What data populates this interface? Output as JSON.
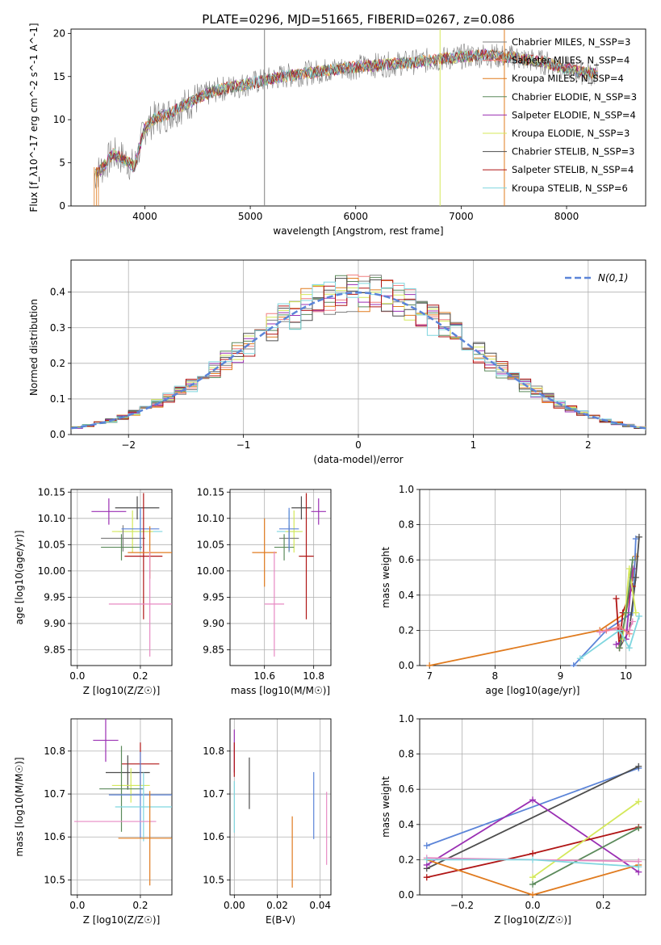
{
  "figure": {
    "title": "PLATE=0296, MJD=51665, FIBERID=0267, z=0.086"
  },
  "colors": {
    "miles_chabrier": "#808080",
    "miles_salpeter": "#f07f7f",
    "miles_kroupa": "#e07b1f",
    "elodie_chabrier": "#5b8a5b",
    "elodie_salpeter": "#9a2fb3",
    "elodie_kroupa": "#d4e85a",
    "stelib_chabrier": "#4d4d4d",
    "stelib_salpeter": "#b01515",
    "stelib_kroupa": "#7fd6df",
    "blue": "#5b84d8",
    "pink": "#e78ac3",
    "normal_curve": "#5b84d8",
    "grid": "#b0b0b0"
  },
  "chart_data": [
    {
      "id": "spectrum",
      "type": "line",
      "title": "PLATE=0296, MJD=51665, FIBERID=0267, z=0.086",
      "xlabel": "wavelength [Angstrom, rest frame]",
      "ylabel": "Flux [f_λ10^-17 erg cm^-2 s^-1 A^-1]",
      "xlim": [
        3300,
        8750
      ],
      "ylim": [
        0,
        20.5
      ],
      "xticks": [
        4000,
        5000,
        6000,
        7000,
        8000
      ],
      "yticks": [
        0,
        5,
        10,
        15,
        20
      ],
      "grid": false,
      "legend_position": "right",
      "continuum": {
        "x": [
          3520,
          3600,
          3700,
          3800,
          3900,
          4000,
          4100,
          4200,
          4300,
          4400,
          4500,
          4700,
          5000,
          5300,
          5600,
          5900,
          6200,
          6500,
          6800,
          7000,
          7200,
          7500,
          7800,
          8100,
          8300
        ],
        "y": [
          3.5,
          4.5,
          6.0,
          5.5,
          4.5,
          9.0,
          10.2,
          10.5,
          11.2,
          11.8,
          12.5,
          13.5,
          14.2,
          15.0,
          15.5,
          16.0,
          16.3,
          16.6,
          17.0,
          17.3,
          17.5,
          17.2,
          16.6,
          15.6,
          15.2
        ]
      },
      "series": [
        {
          "name": "Chabrier MILES, N_SSP=3",
          "color_key": "miles_chabrier"
        },
        {
          "name": "Salpeter MILES, N_SSP=4",
          "color_key": "miles_salpeter"
        },
        {
          "name": "Kroupa MILES, N_SSP=4",
          "color_key": "miles_kroupa"
        },
        {
          "name": "Chabrier ELODIE, N_SSP=3",
          "color_key": "elodie_chabrier"
        },
        {
          "name": "Salpeter ELODIE, N_SSP=4",
          "color_key": "elodie_salpeter"
        },
        {
          "name": "Kroupa ELODIE, N_SSP=3",
          "color_key": "elodie_kroupa"
        },
        {
          "name": "Chabrier STELIB, N_SSP=3",
          "color_key": "stelib_chabrier"
        },
        {
          "name": "Salpeter STELIB, N_SSP=4",
          "color_key": "stelib_salpeter"
        },
        {
          "name": "Kroupa STELIB, N_SSP=6",
          "color_key": "stelib_kroupa"
        }
      ],
      "spikes": [
        {
          "x": 5135,
          "color_key": "miles_chabrier"
        },
        {
          "x": 6800,
          "color_key": "elodie_kroupa"
        },
        {
          "x": 7410,
          "color_key": "miles_kroupa"
        }
      ]
    },
    {
      "id": "residuals",
      "type": "histogram",
      "xlabel": "(data-model)/error",
      "ylabel": "Normed distribution",
      "xlim": [
        -2.5,
        2.5
      ],
      "ylim": [
        0,
        0.49
      ],
      "xticks": [
        -2,
        -1,
        0,
        1,
        2
      ],
      "yticks": [
        0.0,
        0.1,
        0.2,
        0.3,
        0.4
      ],
      "grid": true,
      "legend": "N(0,1)",
      "legend_position": "top-right",
      "curve": "normal pdf mean 0 sigma 1"
    },
    {
      "id": "age-vs-Z",
      "type": "scatter",
      "xlabel": "Z [log10(Z/Z☉)]",
      "ylabel": "age  [log10(age/yr)]",
      "xlim": [
        -0.02,
        0.3
      ],
      "ylim": [
        9.82,
        10.155
      ],
      "xticks": [
        0.0,
        0.2
      ],
      "yticks": [
        9.85,
        9.9,
        9.95,
        10.0,
        10.05,
        10.1,
        10.15
      ],
      "grid": true,
      "points": [
        {
          "x": 0.1,
          "y": 10.113,
          "xerr": 0.055,
          "yerr": 0.025,
          "color_key": "elodie_salpeter"
        },
        {
          "x": 0.19,
          "y": 10.12,
          "xerr": 0.07,
          "yerr": 0.022,
          "color_key": "stelib_chabrier"
        },
        {
          "x": 0.2,
          "y": 10.075,
          "xerr": 0.07,
          "yerr": 0.04,
          "color_key": "stelib_kroupa"
        },
        {
          "x": 0.175,
          "y": 10.075,
          "xerr": 0.065,
          "yerr": 0.04,
          "color_key": "elodie_kroupa"
        },
        {
          "x": 0.145,
          "y": 10.062,
          "xerr": 0.07,
          "yerr": 0.025,
          "color_key": "miles_chabrier"
        },
        {
          "x": 0.14,
          "y": 10.045,
          "xerr": 0.065,
          "yerr": 0.025,
          "color_key": "elodie_chabrier"
        },
        {
          "x": 0.2,
          "y": 10.08,
          "xerr": 0.06,
          "yerr": 0.04,
          "color_key": "blue"
        },
        {
          "x": 0.21,
          "y": 10.028,
          "xerr": 0.06,
          "yerr": 0.12,
          "color_key": "stelib_salpeter"
        },
        {
          "x": 0.23,
          "y": 10.035,
          "xerr": 0.07,
          "yerr": 0.05,
          "color_key": "miles_kroupa"
        },
        {
          "x": 0.23,
          "y": 9.937,
          "xerr": 0.13,
          "yerr": 0.1,
          "color_key": "pink"
        }
      ]
    },
    {
      "id": "age-vs-mass",
      "type": "scatter",
      "xlabel": "mass [log10(M/M☉)]",
      "ylabel": "",
      "xlim": [
        10.46,
        10.87
      ],
      "ylim": [
        9.82,
        10.155
      ],
      "xticks": [
        10.6,
        10.8
      ],
      "yticks": [
        9.85,
        9.9,
        9.95,
        10.0,
        10.05,
        10.1,
        10.15
      ],
      "grid": true,
      "points": [
        {
          "x": 10.82,
          "y": 10.113,
          "xerr": 0.03,
          "yerr": 0.025,
          "color_key": "elodie_salpeter"
        },
        {
          "x": 10.75,
          "y": 10.12,
          "xerr": 0.04,
          "yerr": 0.022,
          "color_key": "stelib_chabrier"
        },
        {
          "x": 10.7,
          "y": 10.075,
          "xerr": 0.05,
          "yerr": 0.04,
          "color_key": "stelib_kroupa"
        },
        {
          "x": 10.72,
          "y": 10.075,
          "xerr": 0.035,
          "yerr": 0.04,
          "color_key": "elodie_kroupa"
        },
        {
          "x": 10.7,
          "y": 10.062,
          "xerr": 0.04,
          "yerr": 0.025,
          "color_key": "miles_chabrier"
        },
        {
          "x": 10.68,
          "y": 10.045,
          "xerr": 0.04,
          "yerr": 0.025,
          "color_key": "elodie_chabrier"
        },
        {
          "x": 10.7,
          "y": 10.08,
          "xerr": 0.04,
          "yerr": 0.04,
          "color_key": "blue"
        },
        {
          "x": 10.77,
          "y": 10.028,
          "xerr": 0.03,
          "yerr": 0.12,
          "color_key": "stelib_salpeter"
        },
        {
          "x": 10.6,
          "y": 10.035,
          "xerr": 0.05,
          "yerr": 0.065,
          "color_key": "miles_kroupa"
        },
        {
          "x": 10.64,
          "y": 9.937,
          "xerr": 0.04,
          "yerr": 0.1,
          "color_key": "pink"
        }
      ]
    },
    {
      "id": "massweight-vs-age",
      "type": "line",
      "xlabel": "age  [log10(age/yr)]",
      "ylabel": "mass weight",
      "xlim": [
        6.85,
        10.3
      ],
      "ylim": [
        0,
        1.0
      ],
      "xticks": [
        7,
        8,
        9,
        10
      ],
      "yticks": [
        0.0,
        0.2,
        0.4,
        0.6,
        0.8,
        1.0
      ],
      "grid": true,
      "series": [
        {
          "color_key": "miles_kroupa",
          "x": [
            7.0,
            9.6,
            10.0,
            10.1,
            10.15
          ],
          "y": [
            0.0,
            0.2,
            0.3,
            0.5,
            0.62
          ]
        },
        {
          "color_key": "blue",
          "x": [
            9.2,
            9.7,
            10.1,
            10.15
          ],
          "y": [
            0.0,
            0.2,
            0.3,
            0.72
          ]
        },
        {
          "color_key": "stelib_chabrier",
          "x": [
            9.9,
            10.05,
            10.15,
            10.2
          ],
          "y": [
            0.1,
            0.2,
            0.5,
            0.73
          ]
        },
        {
          "color_key": "pink",
          "x": [
            9.6,
            9.9,
            10.05,
            10.1
          ],
          "y": [
            0.19,
            0.21,
            0.2,
            0.25
          ]
        },
        {
          "color_key": "stelib_salpeter",
          "x": [
            9.85,
            9.9,
            9.95,
            10.1
          ],
          "y": [
            0.38,
            0.1,
            0.3,
            0.45
          ]
        },
        {
          "color_key": "elodie_salpeter",
          "x": [
            9.85,
            10.0,
            10.1
          ],
          "y": [
            0.12,
            0.15,
            0.55
          ]
        },
        {
          "color_key": "elodie_kroupa",
          "x": [
            9.95,
            10.05,
            10.15
          ],
          "y": [
            0.15,
            0.55,
            0.3
          ]
        },
        {
          "color_key": "elodie_chabrier",
          "x": [
            9.9,
            10.0,
            10.1
          ],
          "y": [
            0.1,
            0.3,
            0.6
          ]
        },
        {
          "color_key": "stelib_kroupa",
          "x": [
            9.3,
            9.9,
            10.05,
            10.2
          ],
          "y": [
            0.04,
            0.2,
            0.1,
            0.28
          ]
        },
        {
          "color_key": "miles_salpeter",
          "x": [
            9.7,
            9.9,
            10.05
          ],
          "y": [
            0.2,
            0.22,
            0.18
          ]
        }
      ]
    },
    {
      "id": "mass-vs-Z",
      "type": "scatter",
      "xlabel": "Z [log10(Z/Z☉)]",
      "ylabel": "mass [log10(M/M☉)]",
      "xlim": [
        -0.02,
        0.3
      ],
      "ylim": [
        10.465,
        10.875
      ],
      "xticks": [
        0.0,
        0.2
      ],
      "yticks": [
        10.5,
        10.6,
        10.7,
        10.8
      ],
      "grid": true,
      "points": [
        {
          "x": 0.09,
          "y": 10.825,
          "xerr": 0.04,
          "yerr": 0.05,
          "color_key": "elodie_salpeter"
        },
        {
          "x": 0.2,
          "y": 10.77,
          "xerr": 0.06,
          "yerr": 0.05,
          "color_key": "stelib_salpeter"
        },
        {
          "x": 0.16,
          "y": 10.75,
          "xerr": 0.07,
          "yerr": 0.04,
          "color_key": "stelib_chabrier"
        },
        {
          "x": 0.17,
          "y": 10.72,
          "xerr": 0.06,
          "yerr": 0.04,
          "color_key": "elodie_kroupa"
        },
        {
          "x": 0.14,
          "y": 10.712,
          "xerr": 0.07,
          "yerr": 0.1,
          "color_key": "elodie_chabrier"
        },
        {
          "x": 0.2,
          "y": 10.698,
          "xerr": 0.1,
          "yerr": 0.1,
          "color_key": "blue"
        },
        {
          "x": 0.21,
          "y": 10.67,
          "xerr": 0.09,
          "yerr": 0.08,
          "color_key": "stelib_kroupa"
        },
        {
          "x": 0.12,
          "y": 10.636,
          "xerr": 0.13,
          "yerr": 0.0,
          "color_key": "pink"
        },
        {
          "x": 0.23,
          "y": 10.597,
          "xerr": 0.1,
          "yerr": 0.11,
          "color_key": "miles_kroupa"
        }
      ]
    },
    {
      "id": "mass-vs-EBV",
      "type": "scatter",
      "xlabel": "E(B-V)",
      "ylabel": "",
      "xlim": [
        -0.002,
        0.045
      ],
      "ylim": [
        10.465,
        10.875
      ],
      "xticks": [
        0.0,
        0.02,
        0.04
      ],
      "yticks": [
        10.5,
        10.6,
        10.7,
        10.8
      ],
      "grid": true,
      "points": [
        {
          "x": 0.0,
          "y": 10.8,
          "xerr": 0,
          "yerr": 0.05,
          "color_key": "elodie_salpeter"
        },
        {
          "x": 0.0,
          "y": 10.78,
          "xerr": 0,
          "yerr": 0.04,
          "color_key": "stelib_salpeter"
        },
        {
          "x": 0.0,
          "y": 10.67,
          "xerr": 0,
          "yerr": 0.06,
          "color_key": "stelib_kroupa"
        },
        {
          "x": 0.007,
          "y": 10.725,
          "xerr": 0,
          "yerr": 0.06,
          "color_key": "stelib_chabrier"
        },
        {
          "x": 0.027,
          "y": 10.565,
          "xerr": 0,
          "yerr": 0.083,
          "color_key": "miles_kroupa"
        },
        {
          "x": 0.037,
          "y": 10.673,
          "xerr": 0,
          "yerr": 0.078,
          "color_key": "blue"
        },
        {
          "x": 0.043,
          "y": 10.62,
          "xerr": 0,
          "yerr": 0.085,
          "color_key": "pink"
        }
      ]
    },
    {
      "id": "massweight-vs-Z",
      "type": "line",
      "xlabel": "Z [log10(Z/Z☉)]",
      "ylabel": "mass weight",
      "xlim": [
        -0.32,
        0.32
      ],
      "ylim": [
        0,
        1.0
      ],
      "xticks": [
        -0.2,
        0.0,
        0.2
      ],
      "yticks": [
        0.0,
        0.2,
        0.4,
        0.6,
        0.8,
        1.0
      ],
      "grid": true,
      "series": [
        {
          "color_key": "blue",
          "x": [
            -0.3,
            0.3
          ],
          "y": [
            0.28,
            0.72
          ]
        },
        {
          "color_key": "stelib_chabrier",
          "x": [
            -0.3,
            0.3
          ],
          "y": [
            0.15,
            0.73
          ]
        },
        {
          "color_key": "elodie_salpeter",
          "x": [
            -0.3,
            0.0,
            0.3
          ],
          "y": [
            0.17,
            0.54,
            0.13
          ]
        },
        {
          "color_key": "stelib_salpeter",
          "x": [
            -0.3,
            0.0,
            0.3
          ],
          "y": [
            0.1,
            0.235,
            0.385
          ]
        },
        {
          "color_key": "elodie_kroupa",
          "x": [
            0.0,
            0.3
          ],
          "y": [
            0.1,
            0.53
          ]
        },
        {
          "color_key": "elodie_chabrier",
          "x": [
            0.0,
            0.3
          ],
          "y": [
            0.06,
            0.38
          ]
        },
        {
          "color_key": "miles_kroupa",
          "x": [
            -0.3,
            0.0,
            0.3
          ],
          "y": [
            0.2,
            0.0,
            0.17
          ]
        },
        {
          "color_key": "pink",
          "x": [
            -0.3,
            0.3
          ],
          "y": [
            0.21,
            0.19
          ]
        },
        {
          "color_key": "stelib_kroupa",
          "x": [
            -0.3,
            0.0,
            0.3
          ],
          "y": [
            0.2,
            0.2,
            0.16
          ]
        }
      ]
    }
  ]
}
